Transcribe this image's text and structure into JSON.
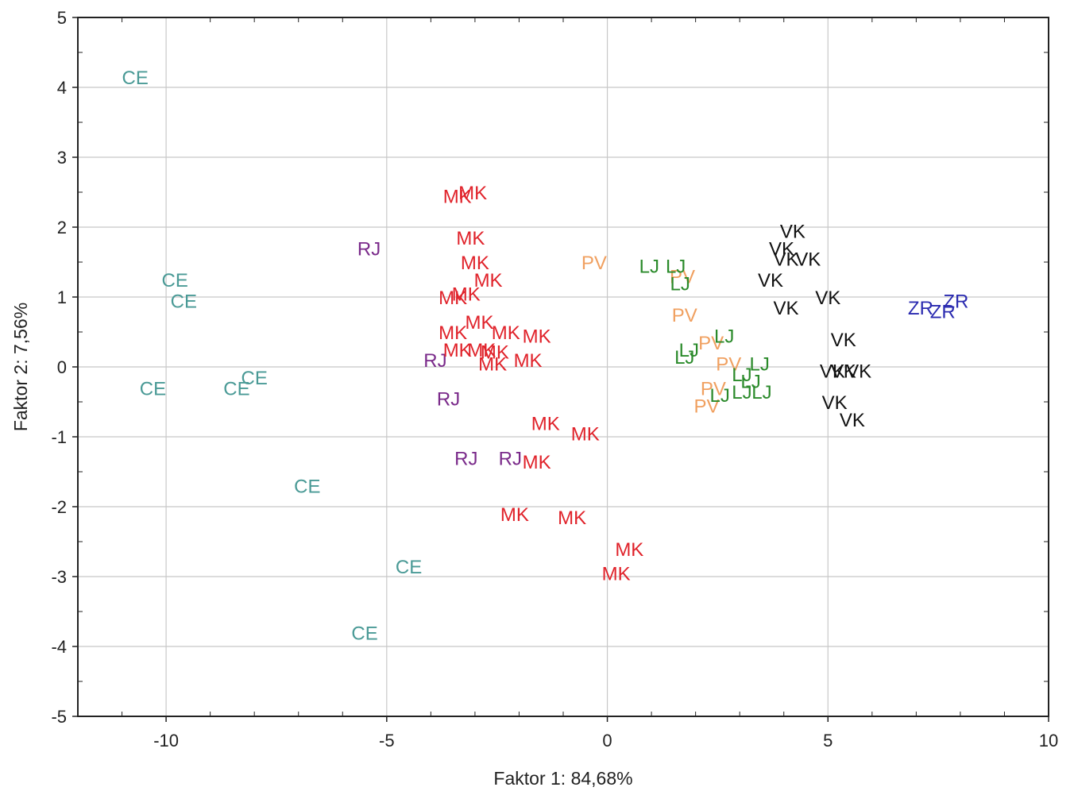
{
  "chart_data": {
    "type": "scatter",
    "xlabel": "Faktor 1: 84,68%",
    "ylabel": "Faktor 2:  7,56%",
    "xlim": [
      -12,
      10
    ],
    "ylim": [
      -5,
      5
    ],
    "x_ticks": [
      "-10",
      "-5",
      "0",
      "5",
      "10"
    ],
    "y_ticks": [
      "5",
      "4",
      "3",
      "2",
      "1",
      "0",
      "-1",
      "-2",
      "-3",
      "-4",
      "-5"
    ],
    "grid": true,
    "colors": {
      "CE": "#4a9a96",
      "RJ": "#7a2a8a",
      "MK": "#e0222a",
      "PV": "#f0a060",
      "LJ": "#2a8a2a",
      "VK": "#111111",
      "ZR": "#2a2ab0"
    },
    "series": [
      {
        "name": "CE",
        "points": [
          {
            "x": -10.7,
            "y": 4.15
          },
          {
            "x": -9.8,
            "y": 1.25
          },
          {
            "x": -9.6,
            "y": 0.95
          },
          {
            "x": -10.3,
            "y": -0.3
          },
          {
            "x": -8.4,
            "y": -0.3
          },
          {
            "x": -8.0,
            "y": -0.15
          },
          {
            "x": -6.8,
            "y": -1.7
          },
          {
            "x": -4.5,
            "y": -2.85
          },
          {
            "x": -5.5,
            "y": -3.8
          }
        ]
      },
      {
        "name": "RJ",
        "points": [
          {
            "x": -5.4,
            "y": 1.7
          },
          {
            "x": -3.9,
            "y": 0.1
          },
          {
            "x": -3.6,
            "y": -0.45
          },
          {
            "x": -3.2,
            "y": -1.3
          },
          {
            "x": -2.2,
            "y": -1.3
          }
        ]
      },
      {
        "name": "MK",
        "points": [
          {
            "x": -3.4,
            "y": 2.45
          },
          {
            "x": -3.05,
            "y": 2.5
          },
          {
            "x": -3.1,
            "y": 1.85
          },
          {
            "x": -3.0,
            "y": 1.5
          },
          {
            "x": -2.7,
            "y": 1.25
          },
          {
            "x": -3.5,
            "y": 1.0
          },
          {
            "x": -3.2,
            "y": 1.05
          },
          {
            "x": -2.9,
            "y": 0.65
          },
          {
            "x": -3.5,
            "y": 0.5
          },
          {
            "x": -2.3,
            "y": 0.5
          },
          {
            "x": -1.6,
            "y": 0.45
          },
          {
            "x": -3.4,
            "y": 0.25
          },
          {
            "x": -2.85,
            "y": 0.25
          },
          {
            "x": -2.55,
            "y": 0.22
          },
          {
            "x": -2.6,
            "y": 0.05
          },
          {
            "x": -1.8,
            "y": 0.1
          },
          {
            "x": -1.4,
            "y": -0.8
          },
          {
            "x": -0.5,
            "y": -0.95
          },
          {
            "x": -1.6,
            "y": -1.35
          },
          {
            "x": -2.1,
            "y": -2.1
          },
          {
            "x": -0.8,
            "y": -2.15
          },
          {
            "x": 0.5,
            "y": -2.6
          },
          {
            "x": 0.2,
            "y": -2.95
          }
        ]
      },
      {
        "name": "PV",
        "points": [
          {
            "x": -0.3,
            "y": 1.5
          },
          {
            "x": 1.7,
            "y": 1.3
          },
          {
            "x": 1.75,
            "y": 0.75
          },
          {
            "x": 2.35,
            "y": 0.35
          },
          {
            "x": 2.75,
            "y": 0.05
          },
          {
            "x": 2.4,
            "y": -0.3
          },
          {
            "x": 2.25,
            "y": -0.55
          }
        ]
      },
      {
        "name": "LJ",
        "points": [
          {
            "x": 0.95,
            "y": 1.45
          },
          {
            "x": 1.55,
            "y": 1.45
          },
          {
            "x": 1.65,
            "y": 1.2
          },
          {
            "x": 2.65,
            "y": 0.45
          },
          {
            "x": 1.85,
            "y": 0.25
          },
          {
            "x": 1.75,
            "y": 0.15
          },
          {
            "x": 3.45,
            "y": 0.05
          },
          {
            "x": 3.05,
            "y": -0.1
          },
          {
            "x": 2.55,
            "y": -0.4
          },
          {
            "x": 3.05,
            "y": -0.35
          },
          {
            "x": 3.5,
            "y": -0.35
          },
          {
            "x": 3.25,
            "y": -0.2
          }
        ]
      },
      {
        "name": "VK",
        "points": [
          {
            "x": 4.2,
            "y": 1.95
          },
          {
            "x": 3.95,
            "y": 1.7
          },
          {
            "x": 4.05,
            "y": 1.55
          },
          {
            "x": 4.55,
            "y": 1.55
          },
          {
            "x": 3.7,
            "y": 1.25
          },
          {
            "x": 4.05,
            "y": 0.85
          },
          {
            "x": 5.0,
            "y": 1.0
          },
          {
            "x": 5.35,
            "y": 0.4
          },
          {
            "x": 5.1,
            "y": -0.05
          },
          {
            "x": 5.7,
            "y": -0.05
          },
          {
            "x": 5.35,
            "y": -0.05
          },
          {
            "x": 5.15,
            "y": -0.5
          },
          {
            "x": 5.55,
            "y": -0.75
          }
        ]
      },
      {
        "name": "ZR",
        "points": [
          {
            "x": 7.1,
            "y": 0.85
          },
          {
            "x": 7.6,
            "y": 0.8
          },
          {
            "x": 7.9,
            "y": 0.95
          }
        ]
      }
    ]
  }
}
